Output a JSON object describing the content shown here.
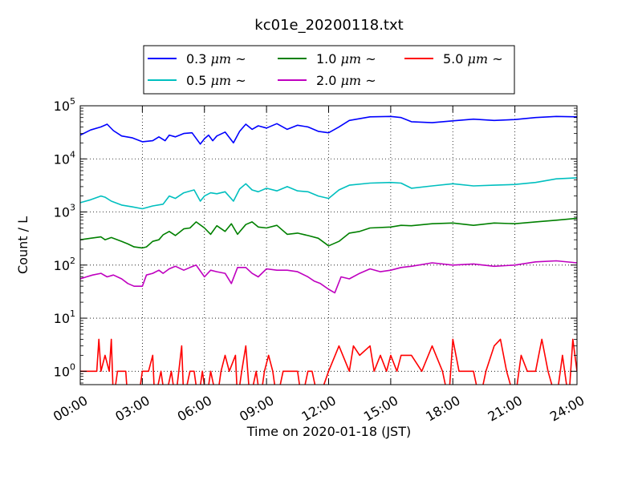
{
  "chart_data": {
    "type": "line",
    "title": "kc01e_20200118.txt",
    "xlabel": "Time on 2020-01-18 (JST)",
    "ylabel": "Count / L",
    "yscale": "log",
    "ylim": [
      0.56,
      100000
    ],
    "xlim": [
      "00:00",
      "24:00"
    ],
    "x_ticks": [
      "00:00",
      "03:00",
      "06:00",
      "09:00",
      "12:00",
      "15:00",
      "18:00",
      "21:00",
      "24:00"
    ],
    "y_ticks": [
      {
        "value": 1,
        "base": "10",
        "exp": "0"
      },
      {
        "value": 10,
        "base": "10",
        "exp": "1"
      },
      {
        "value": 100,
        "base": "10",
        "exp": "2"
      },
      {
        "value": 1000,
        "base": "10",
        "exp": "3"
      },
      {
        "value": 10000,
        "base": "10",
        "exp": "4"
      },
      {
        "value": 100000,
        "base": "10",
        "exp": "5"
      }
    ],
    "grid": true,
    "legend_position": "top-center (above plot)",
    "series": [
      {
        "name": "0.3",
        "unit": "μm",
        "suffix": "~",
        "color": "#0000ff",
        "x": [
          0,
          0.5,
          1,
          1.3,
          1.6,
          2,
          2.5,
          3,
          3.5,
          3.8,
          4.1,
          4.3,
          4.6,
          5,
          5.4,
          5.8,
          6,
          6.2,
          6.4,
          6.6,
          7,
          7.4,
          7.7,
          8,
          8.3,
          8.6,
          9,
          9.5,
          10,
          10.5,
          11,
          11.5,
          12,
          12.5,
          13,
          14,
          15,
          15.5,
          16,
          17,
          18,
          19,
          20,
          21,
          22,
          23,
          24
        ],
        "y": [
          28000,
          35000,
          40000,
          45000,
          34000,
          27000,
          25000,
          21000,
          22000,
          26000,
          22000,
          28000,
          26000,
          30000,
          31000,
          19000,
          24000,
          28000,
          22000,
          27000,
          32000,
          20000,
          33000,
          45000,
          36000,
          42000,
          38000,
          46000,
          36000,
          43000,
          40000,
          33000,
          31000,
          40000,
          53000,
          62000,
          63000,
          60000,
          50000,
          48000,
          52000,
          56000,
          53000,
          55000,
          60000,
          63000,
          62000
        ]
      },
      {
        "name": "0.5",
        "unit": "μm",
        "suffix": "~",
        "color": "#00bfbf",
        "x": [
          0,
          0.5,
          1,
          1.2,
          1.5,
          2,
          2.5,
          3,
          3.5,
          4,
          4.3,
          4.6,
          5,
          5.5,
          5.8,
          6,
          6.3,
          6.6,
          7,
          7.4,
          7.7,
          8,
          8.3,
          8.6,
          9,
          9.5,
          10,
          10.5,
          11,
          11.5,
          12,
          12.5,
          13,
          14,
          15,
          15.5,
          16,
          17,
          18,
          19,
          20,
          21,
          22,
          23,
          24
        ],
        "y": [
          1500,
          1700,
          2000,
          1900,
          1600,
          1350,
          1250,
          1150,
          1300,
          1400,
          2000,
          1800,
          2300,
          2600,
          1600,
          2000,
          2300,
          2200,
          2400,
          1600,
          2700,
          3400,
          2600,
          2400,
          2800,
          2500,
          3000,
          2500,
          2400,
          2000,
          1800,
          2600,
          3200,
          3500,
          3600,
          3500,
          2800,
          3100,
          3400,
          3100,
          3200,
          3300,
          3600,
          4200,
          4400
        ]
      },
      {
        "name": "1.0",
        "unit": "μm",
        "suffix": "~",
        "color": "#008000",
        "x": [
          0,
          0.5,
          1,
          1.2,
          1.5,
          2,
          2.3,
          2.6,
          3,
          3.2,
          3.5,
          3.8,
          4,
          4.3,
          4.6,
          5,
          5.3,
          5.6,
          6,
          6.3,
          6.6,
          7,
          7.3,
          7.6,
          8,
          8.3,
          8.6,
          9,
          9.5,
          10,
          10.5,
          11,
          11.5,
          12,
          12.5,
          13,
          13.5,
          14,
          15,
          15.5,
          16,
          17,
          18,
          19,
          20,
          21,
          22,
          23,
          24
        ],
        "y": [
          300,
          320,
          340,
          300,
          330,
          280,
          250,
          220,
          210,
          220,
          280,
          300,
          370,
          430,
          360,
          480,
          500,
          650,
          500,
          380,
          550,
          430,
          600,
          380,
          580,
          650,
          520,
          500,
          560,
          380,
          400,
          360,
          320,
          230,
          280,
          400,
          430,
          500,
          520,
          560,
          550,
          600,
          620,
          560,
          620,
          600,
          650,
          700,
          760
        ]
      },
      {
        "name": "2.0",
        "unit": "μm",
        "suffix": "~",
        "color": "#bf00bf",
        "x": [
          0,
          0.3,
          0.6,
          1,
          1.3,
          1.6,
          2,
          2.3,
          2.6,
          3,
          3.2,
          3.5,
          3.8,
          4,
          4.3,
          4.6,
          5,
          5.3,
          5.6,
          6,
          6.3,
          6.6,
          7,
          7.3,
          7.6,
          8,
          8.3,
          8.6,
          9,
          9.5,
          10,
          10.5,
          11,
          11.3,
          11.6,
          12,
          12.3,
          12.6,
          13,
          13.5,
          14,
          14.5,
          15,
          15.5,
          16,
          17,
          18,
          19,
          20,
          21,
          22,
          23,
          24
        ],
        "y": [
          55,
          60,
          65,
          70,
          60,
          65,
          55,
          45,
          40,
          40,
          65,
          70,
          80,
          70,
          85,
          95,
          80,
          90,
          100,
          60,
          80,
          75,
          70,
          45,
          90,
          90,
          70,
          60,
          85,
          80,
          80,
          75,
          60,
          50,
          45,
          35,
          30,
          60,
          55,
          70,
          85,
          75,
          80,
          90,
          95,
          110,
          100,
          105,
          95,
          100,
          115,
          120,
          110
        ]
      },
      {
        "name": "5.0",
        "unit": "μm",
        "suffix": "~",
        "color": "#ff0000",
        "x": [
          0,
          0.8,
          0.9,
          1,
          1.2,
          1.4,
          1.5,
          1.6,
          1.8,
          2.2,
          2.3,
          2.8,
          3,
          3.3,
          3.5,
          3.6,
          3.9,
          4.1,
          4.4,
          4.6,
          4.9,
          5,
          5.3,
          5.5,
          5.7,
          5.9,
          6.1,
          6.3,
          6.6,
          6.8,
          7,
          7.2,
          7.5,
          7.6,
          7.8,
          8,
          8.2,
          8.5,
          8.7,
          8.9,
          9.1,
          9.3,
          9.5,
          9.8,
          10.2,
          10.5,
          10.7,
          11,
          11.2,
          11.5,
          12,
          12.5,
          13,
          13.2,
          13.5,
          14,
          14.2,
          14.5,
          14.8,
          15,
          15.3,
          15.5,
          16,
          16.5,
          17,
          17.5,
          17.8,
          18,
          18.3,
          18.6,
          19,
          19.3,
          19.6,
          20,
          20.3,
          20.6,
          21,
          21.3,
          21.6,
          22,
          22.3,
          22.6,
          23,
          23.3,
          23.6,
          23.8,
          24
        ],
        "y": [
          1,
          1,
          4,
          1,
          2,
          1,
          4,
          0,
          1,
          1,
          0,
          0,
          1,
          1,
          2,
          0,
          1,
          0,
          1,
          0,
          3,
          0,
          1,
          1,
          0,
          1,
          0,
          1,
          0,
          1,
          2,
          1,
          2,
          0,
          1,
          3,
          0,
          1,
          0,
          1,
          2,
          1,
          0,
          1,
          1,
          1,
          0,
          1,
          1,
          0,
          1,
          3,
          1,
          3,
          2,
          3,
          1,
          2,
          1,
          2,
          1,
          2,
          2,
          1,
          3,
          1,
          0,
          4,
          1,
          1,
          1,
          0,
          1,
          3,
          4,
          1,
          0,
          2,
          1,
          1,
          4,
          1,
          0,
          2,
          0,
          4,
          1
        ]
      }
    ]
  }
}
